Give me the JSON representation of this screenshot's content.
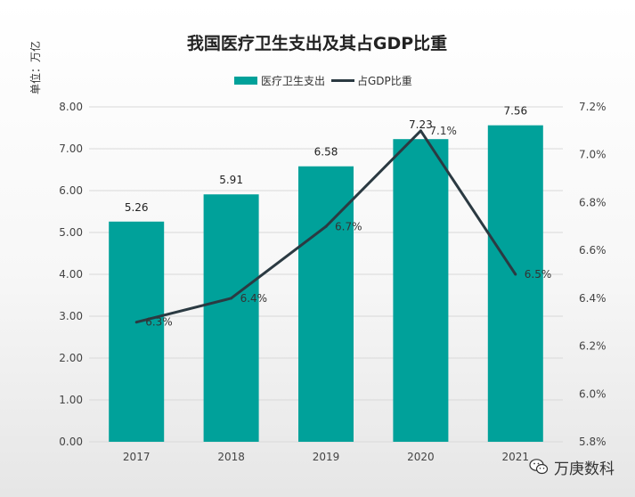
{
  "chart_data": {
    "type": "bar+line",
    "title": "我国医疗卫生支出及其占GDP比重",
    "unit_label": "单位：万亿",
    "categories": [
      "2017",
      "2018",
      "2019",
      "2020",
      "2021"
    ],
    "series": [
      {
        "name": "医疗卫生支出",
        "type": "bar",
        "axis": "left",
        "values": [
          5.26,
          5.91,
          6.58,
          7.23,
          7.56
        ],
        "labels": [
          "5.26",
          "5.91",
          "6.58",
          "7.23",
          "7.56"
        ]
      },
      {
        "name": "占GDP比重",
        "type": "line",
        "axis": "right",
        "values": [
          6.3,
          6.4,
          6.7,
          7.1,
          6.5
        ],
        "labels": [
          "6.3%",
          "6.4%",
          "6.7%",
          "7.1%",
          "6.5%"
        ]
      }
    ],
    "y_left": {
      "min": 0,
      "max": 8,
      "ticks": [
        "0.00",
        "1.00",
        "2.00",
        "3.00",
        "4.00",
        "5.00",
        "6.00",
        "7.00",
        "8.00"
      ]
    },
    "y_right": {
      "min": 5.8,
      "max": 7.2,
      "ticks": [
        "5.8%",
        "6.0%",
        "6.2%",
        "6.4%",
        "6.6%",
        "6.8%",
        "7.0%",
        "7.2%"
      ]
    },
    "legend_position": "top-center",
    "grid": true
  },
  "colors": {
    "bar": "#00A19A",
    "line": "#2B3A42",
    "grid": "#d9d9d9"
  },
  "watermark": {
    "text": "万庚数科",
    "icon": "wechat-icon"
  }
}
